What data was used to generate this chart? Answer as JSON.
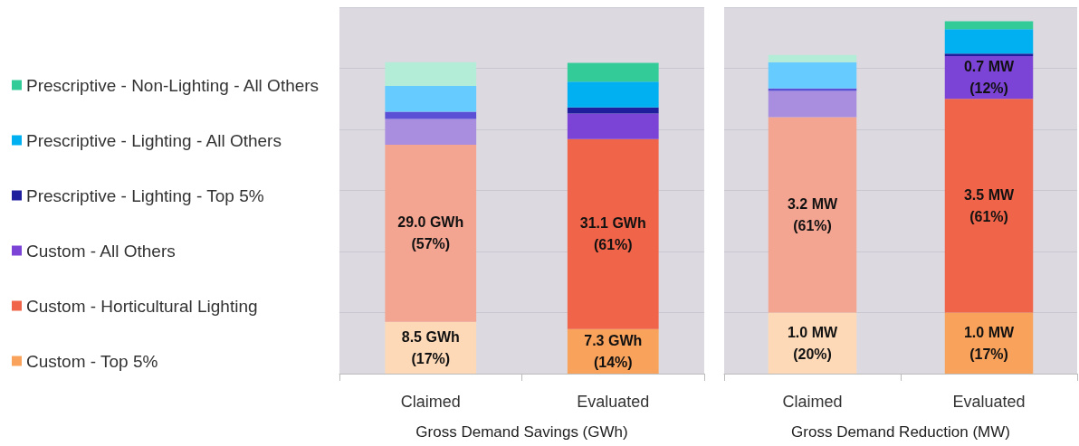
{
  "chart_data": [
    {
      "type": "bar",
      "stacked": true,
      "xlabel": "Gross Demand Savings (GWh)",
      "categories": [
        "Claimed",
        "Evaluated"
      ],
      "ylim": [
        0,
        60
      ],
      "yticks": [
        {
          "value": 0,
          "label": null
        },
        {
          "value": 10,
          "label": null
        },
        {
          "value": 20,
          "label": null
        },
        {
          "value": 30,
          "label": null
        },
        {
          "value": 40,
          "label": null
        },
        {
          "value": 50,
          "label": null
        },
        {
          "value": 60,
          "label": null
        }
      ],
      "tick_labels": "x",
      "grid": "y",
      "legend": "left",
      "series": [
        {
          "name": "Custom - Top 5%",
          "color": "#f9a25b",
          "colors": [
            "#fdd9b8",
            "#f9a25b"
          ],
          "values": [
            8.5,
            7.3
          ],
          "value_labels": [
            "8.5 GWh\n(17%)",
            "7.3 GWh\n(14%)"
          ]
        },
        {
          "name": "Custom - Horticultural Lighting",
          "color": "#f0654a",
          "colors": [
            "#f4a592",
            "#f0654a"
          ],
          "values": [
            29.0,
            31.1
          ],
          "value_labels": [
            "29.0 GWh\n(57%)",
            "31.1 GWh\n(61%)"
          ]
        },
        {
          "name": "Custom - All Others",
          "color": "#7b43d6",
          "colors": [
            "#a98ee0",
            "#7b43d6"
          ],
          "values": [
            4.2,
            4.2
          ]
        },
        {
          "name": "Prescriptive - Lighting - Top 5%",
          "color": "#1f1f9e",
          "colors": [
            "#5b4fd6",
            "#1f1f9e"
          ],
          "values": [
            1.2,
            1.0
          ]
        },
        {
          "name": "Prescriptive - Lighting - All Others",
          "color": "#00b0f0",
          "colors": [
            "#66ccff",
            "#00b0f0"
          ],
          "values": [
            4.2,
            4.2
          ]
        },
        {
          "name": "Prescriptive - Non-Lighting - All Others",
          "color": "#33cc99",
          "colors": [
            "#b3ecd7",
            "#33cc99"
          ],
          "values": [
            3.9,
            3.1
          ]
        }
      ]
    },
    {
      "type": "bar",
      "stacked": true,
      "xlabel": "Gross Demand Reduction (MW)",
      "categories": [
        "Claimed",
        "Evaluated"
      ],
      "ylim": [
        0,
        6
      ],
      "yticks": [
        {
          "value": 0,
          "label": null
        },
        {
          "value": 1,
          "label": null
        },
        {
          "value": 2,
          "label": null
        },
        {
          "value": 3,
          "label": null
        },
        {
          "value": 4,
          "label": null
        },
        {
          "value": 5,
          "label": null
        },
        {
          "value": 6,
          "label": null
        }
      ],
      "tick_labels": "x",
      "grid": "y",
      "series": [
        {
          "color": "#f9a25b",
          "colors": [
            "#fdd9b8",
            "#f9a25b"
          ],
          "values": [
            1.0,
            1.0
          ],
          "value_labels": [
            "1.0 MW\n(20%)",
            "1.0 MW\n(17%)"
          ]
        },
        {
          "color": "#f0654a",
          "colors": [
            "#f4a592",
            "#f0654a"
          ],
          "values": [
            3.2,
            3.5
          ],
          "value_labels": [
            "3.2 MW\n(61%)",
            "3.5 MW\n(61%)"
          ]
        },
        {
          "color": "#7b43d6",
          "colors": [
            "#a98ee0",
            "#7b43d6"
          ],
          "values": [
            0.43,
            0.7
          ],
          "value_labels": [
            null,
            "0.7 MW\n(12%)"
          ]
        },
        {
          "color": "#1f1f9e",
          "colors": [
            "#5b4fd6",
            "#1f1f9e"
          ],
          "values": [
            0.04,
            0.04
          ]
        },
        {
          "color": "#00b0f0",
          "colors": [
            "#66ccff",
            "#00b0f0"
          ],
          "values": [
            0.43,
            0.4
          ]
        },
        {
          "color": "#33cc99",
          "colors": [
            "#b3ecd7",
            "#33cc99"
          ],
          "values": [
            0.12,
            0.13
          ]
        }
      ]
    }
  ]
}
